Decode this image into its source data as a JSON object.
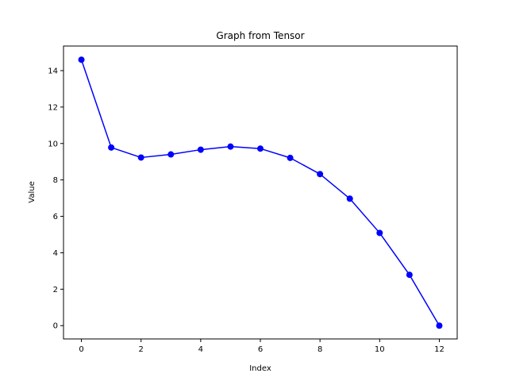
{
  "chart_data": {
    "type": "line",
    "title": "Graph from Tensor",
    "xlabel": "Index",
    "ylabel": "Value",
    "xlim": [
      -0.6,
      12.6
    ],
    "ylim": [
      -0.73,
      15.35
    ],
    "xticks": [
      0,
      2,
      4,
      6,
      8,
      10,
      12
    ],
    "yticks": [
      0,
      2,
      4,
      6,
      8,
      10,
      12,
      14
    ],
    "grid": false,
    "series": [
      {
        "color": "#0000ff",
        "marker": "circle",
        "x": [
          0,
          1,
          2,
          3,
          4,
          5,
          6,
          7,
          8,
          9,
          10,
          11,
          12
        ],
        "values": [
          14.6,
          9.78,
          9.23,
          9.4,
          9.66,
          9.83,
          9.72,
          9.21,
          8.32,
          6.97,
          5.09,
          2.79,
          0.0
        ]
      }
    ]
  }
}
